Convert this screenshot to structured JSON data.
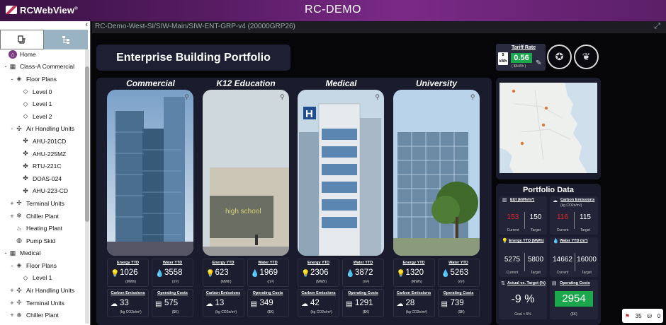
{
  "app": {
    "logo_text": "RCWebView",
    "logo_tm": "®",
    "title": "RC-DEMO"
  },
  "sidebar": {
    "tabs": [
      {
        "icon": "building-tree-icon"
      },
      {
        "icon": "org-tree-icon"
      }
    ],
    "collapse_glyph": "‹",
    "tree": [
      {
        "label": "Home",
        "indent": 0,
        "toggle": "",
        "icon": "home-icon"
      },
      {
        "label": "Class-A Commercial",
        "indent": 0,
        "toggle": "-",
        "icon": "building-icon"
      },
      {
        "label": "Floor Plans",
        "indent": 1,
        "toggle": "-",
        "icon": "floorplan-icon"
      },
      {
        "label": "Level 0",
        "indent": 2,
        "toggle": "",
        "icon": "floor-level-icon"
      },
      {
        "label": "Level 1",
        "indent": 2,
        "toggle": "",
        "icon": "floor-level-icon"
      },
      {
        "label": "Level 2",
        "indent": 2,
        "toggle": "",
        "icon": "floor-level-icon"
      },
      {
        "label": "Air Handling Units",
        "indent": 1,
        "toggle": "-",
        "icon": "ahu-icon"
      },
      {
        "label": "AHU-201CD",
        "indent": 2,
        "toggle": "",
        "icon": "fan-icon"
      },
      {
        "label": "AHU-225MZ",
        "indent": 2,
        "toggle": "",
        "icon": "fan-icon"
      },
      {
        "label": "RTU-221C",
        "indent": 2,
        "toggle": "",
        "icon": "fan-icon"
      },
      {
        "label": "DOAS-024",
        "indent": 2,
        "toggle": "",
        "icon": "fan-icon"
      },
      {
        "label": "AHU-223-CD",
        "indent": 2,
        "toggle": "",
        "icon": "fan-icon"
      },
      {
        "label": "Terminal Units",
        "indent": 1,
        "toggle": "+",
        "icon": "terminal-unit-icon"
      },
      {
        "label": "Chiller Plant",
        "indent": 1,
        "toggle": "+",
        "icon": "snowflake-icon"
      },
      {
        "label": "Heating Plant",
        "indent": 1,
        "toggle": "",
        "icon": "flame-icon"
      },
      {
        "label": "Pump Skid",
        "indent": 1,
        "toggle": "",
        "icon": "pump-icon"
      },
      {
        "label": "Medical",
        "indent": 0,
        "toggle": "-",
        "icon": "building-icon"
      },
      {
        "label": "Floor Plans",
        "indent": 1,
        "toggle": "-",
        "icon": "floorplan-icon"
      },
      {
        "label": "Level 1",
        "indent": 2,
        "toggle": "",
        "icon": "floor-level-icon"
      },
      {
        "label": "Air Handling Units",
        "indent": 1,
        "toggle": "+",
        "icon": "ahu-icon"
      },
      {
        "label": "Terminal Units",
        "indent": 1,
        "toggle": "+",
        "icon": "terminal-unit-icon"
      },
      {
        "label": "Chiller Plant",
        "indent": 1,
        "toggle": "+",
        "icon": "snowflake-icon"
      }
    ]
  },
  "pathbar": {
    "path": "RC-Demo-West-SI/SIW-Main/SIW-ENT-GRP-v4 (20000GRP26)",
    "fullscreen_glyph": "⤢"
  },
  "main": {
    "title": "Enterprise Building Portfolio",
    "tariff": {
      "label": "Tariff Rate",
      "value": "0.56",
      "unit": "( $/kWh )",
      "icon_text": "$ kWh"
    },
    "buildings": [
      {
        "name": "Commercial",
        "energy": "1026",
        "water": "3558",
        "carbon": "33",
        "costs": "575"
      },
      {
        "name": "K12 Education",
        "energy": "623",
        "water": "1969",
        "carbon": "13",
        "costs": "349"
      },
      {
        "name": "Medical",
        "energy": "2306",
        "water": "3872",
        "carbon": "42",
        "costs": "1291"
      },
      {
        "name": "University",
        "energy": "1320",
        "water": "5263",
        "carbon": "28",
        "costs": "739"
      }
    ],
    "tile_labels": {
      "energy": "Energy YTD",
      "energy_unit": "(MWh)",
      "water": "Water YTD",
      "water_unit": "(m³)",
      "carbon": "Carbon Emissions",
      "carbon_unit": "(kg CO2e/m²)",
      "costs": "Operating Costs",
      "costs_unit": "($K)"
    },
    "portfolio": {
      "title": "Portfolio Data",
      "eui": {
        "label": "EUI (kWh/m²)",
        "current": "153",
        "target": "150"
      },
      "carbon": {
        "label": "Carbon Emissions",
        "sublabel": "(kg CO2e/m²)",
        "current": "116",
        "target": "115"
      },
      "energy": {
        "label": "Energy YTD (MWh)",
        "current": "5275",
        "target": "5800"
      },
      "water": {
        "label": "Water YTD (m³)",
        "current": "14662",
        "target": "16000"
      },
      "actual_vs_target": {
        "label": "Actual vs. Target (%)",
        "value": "-9 %",
        "goal": "Goal < 5%"
      },
      "operating_costs": {
        "label": "Operating Costs",
        "value": "2954",
        "unit": "($K)"
      },
      "current_label": "Current",
      "target_label": "Target"
    }
  },
  "status": {
    "alarm_count": "35",
    "other_count": "0"
  },
  "colors": {
    "topbar": "#5a1d66",
    "panel": "#1a1b2c",
    "good": "#1ba84c",
    "bad": "#e0282e"
  }
}
